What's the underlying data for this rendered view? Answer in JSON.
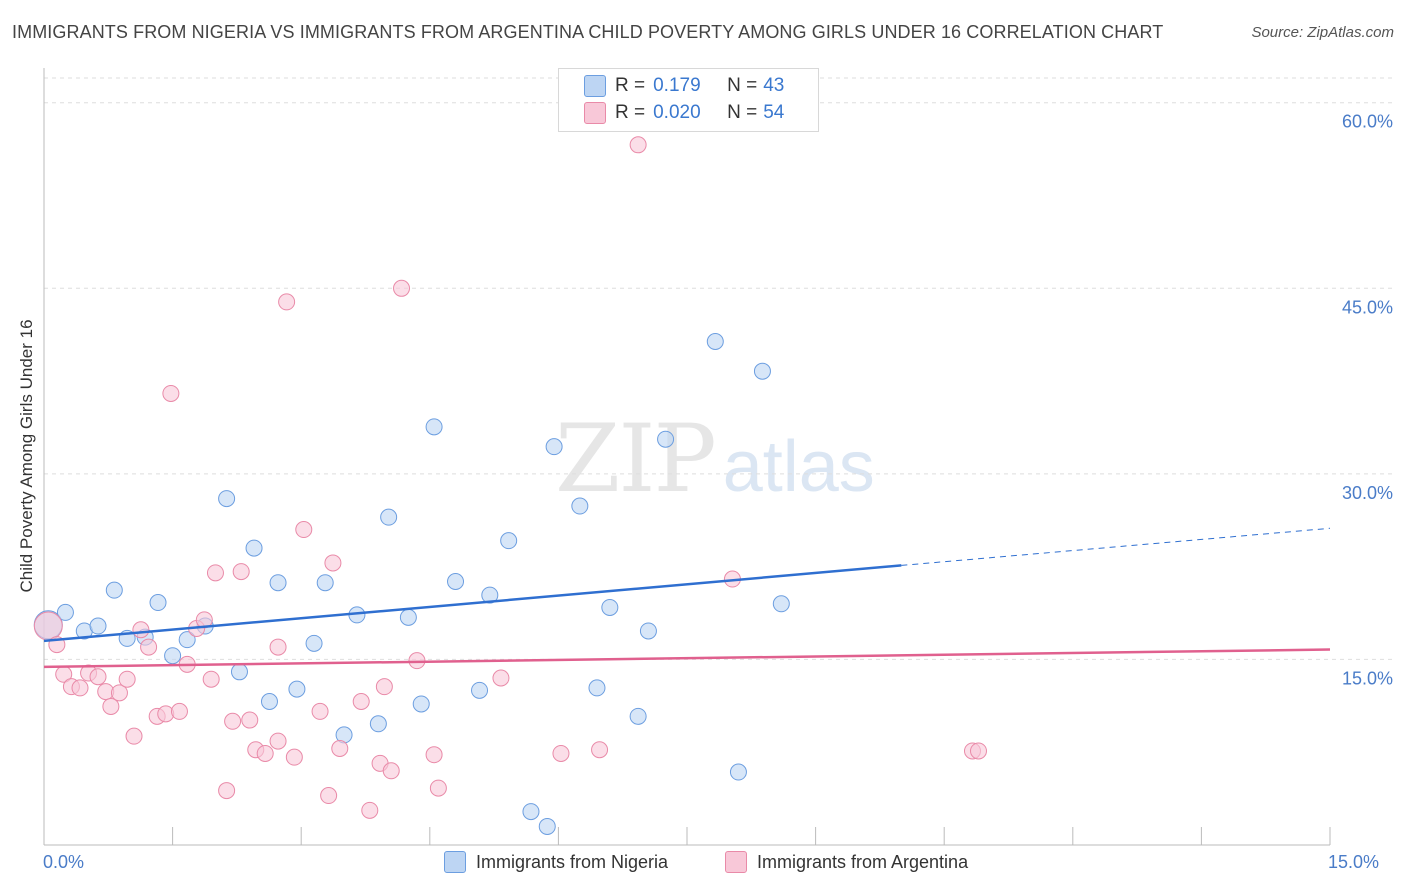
{
  "title": "IMMIGRANTS FROM NIGERIA VS IMMIGRANTS FROM ARGENTINA CHILD POVERTY AMONG GIRLS UNDER 16 CORRELATION CHART",
  "source": "Source: ZipAtlas.com",
  "watermark": {
    "zip": "ZIP",
    "atlas": "atlas"
  },
  "legend_top": {
    "nigeria": {
      "r_label": "R =",
      "r_value": "0.179",
      "n_label": "N =",
      "n_value": "43"
    },
    "argentina": {
      "r_label": "R =",
      "r_value": "0.020",
      "n_label": "N =",
      "n_value": "54"
    }
  },
  "chart_data": {
    "type": "scatter",
    "title": "IMMIGRANTS FROM NIGERIA VS IMMIGRANTS FROM ARGENTINA CHILD POVERTY AMONG GIRLS UNDER 16 CORRELATION CHART",
    "xlabel": "",
    "ylabel": "Child Poverty Among Girls Under 16",
    "xlim": [
      0,
      15
    ],
    "ylim": [
      0,
      62
    ],
    "x_tick_labels": [
      "0.0%",
      "15.0%"
    ],
    "y_ticks": [
      {
        "value": 15,
        "label": "15.0%"
      },
      {
        "value": 30,
        "label": "30.0%"
      },
      {
        "value": 45,
        "label": "45.0%"
      },
      {
        "value": 60,
        "label": "60.0%"
      }
    ],
    "series": [
      {
        "name": "Immigrants from Nigeria",
        "color": "#6c9ee0",
        "fill": "#bdd5f3",
        "points": [
          {
            "x": 0.05,
            "y": 17.8,
            "big": true
          },
          {
            "x": 0.25,
            "y": 18.8
          },
          {
            "x": 0.47,
            "y": 17.3
          },
          {
            "x": 0.63,
            "y": 17.7
          },
          {
            "x": 0.82,
            "y": 20.6
          },
          {
            "x": 0.97,
            "y": 16.7
          },
          {
            "x": 1.18,
            "y": 16.8
          },
          {
            "x": 1.33,
            "y": 19.6
          },
          {
            "x": 1.5,
            "y": 15.3
          },
          {
            "x": 1.67,
            "y": 16.6
          },
          {
            "x": 1.88,
            "y": 17.7
          },
          {
            "x": 2.13,
            "y": 28.0
          },
          {
            "x": 2.28,
            "y": 14.0
          },
          {
            "x": 2.45,
            "y": 24.0
          },
          {
            "x": 2.63,
            "y": 11.6
          },
          {
            "x": 2.73,
            "y": 21.2
          },
          {
            "x": 2.95,
            "y": 12.6
          },
          {
            "x": 3.15,
            "y": 16.3
          },
          {
            "x": 3.28,
            "y": 21.2
          },
          {
            "x": 3.65,
            "y": 18.6
          },
          {
            "x": 3.5,
            "y": 8.9
          },
          {
            "x": 3.9,
            "y": 9.8
          },
          {
            "x": 4.02,
            "y": 26.5
          },
          {
            "x": 4.25,
            "y": 18.4
          },
          {
            "x": 4.4,
            "y": 11.4
          },
          {
            "x": 4.55,
            "y": 33.8
          },
          {
            "x": 4.8,
            "y": 21.3
          },
          {
            "x": 5.08,
            "y": 12.5
          },
          {
            "x": 5.2,
            "y": 20.2
          },
          {
            "x": 5.42,
            "y": 24.6
          },
          {
            "x": 5.68,
            "y": 2.7
          },
          {
            "x": 5.87,
            "y": 1.5
          },
          {
            "x": 5.95,
            "y": 32.2
          },
          {
            "x": 6.25,
            "y": 27.4
          },
          {
            "x": 6.45,
            "y": 12.7
          },
          {
            "x": 6.6,
            "y": 19.2
          },
          {
            "x": 6.93,
            "y": 10.4
          },
          {
            "x": 7.05,
            "y": 17.3
          },
          {
            "x": 7.25,
            "y": 32.8
          },
          {
            "x": 7.83,
            "y": 40.7
          },
          {
            "x": 8.1,
            "y": 5.9
          },
          {
            "x": 8.38,
            "y": 38.3
          },
          {
            "x": 8.6,
            "y": 19.5
          }
        ]
      },
      {
        "name": "Immigrants from Argentina",
        "color": "#e98aa8",
        "fill": "#f8c8d8",
        "points": [
          {
            "x": 0.05,
            "y": 17.7,
            "big": true
          },
          {
            "x": 0.15,
            "y": 16.2
          },
          {
            "x": 0.23,
            "y": 13.8
          },
          {
            "x": 0.32,
            "y": 12.8
          },
          {
            "x": 0.42,
            "y": 12.7
          },
          {
            "x": 0.52,
            "y": 13.9
          },
          {
            "x": 0.63,
            "y": 13.6
          },
          {
            "x": 0.72,
            "y": 12.4
          },
          {
            "x": 0.78,
            "y": 11.2
          },
          {
            "x": 0.88,
            "y": 12.3
          },
          {
            "x": 0.97,
            "y": 13.4
          },
          {
            "x": 1.05,
            "y": 8.8
          },
          {
            "x": 1.13,
            "y": 17.4
          },
          {
            "x": 1.22,
            "y": 16.0
          },
          {
            "x": 1.32,
            "y": 10.4
          },
          {
            "x": 1.42,
            "y": 10.6
          },
          {
            "x": 1.48,
            "y": 36.5
          },
          {
            "x": 1.58,
            "y": 10.8
          },
          {
            "x": 1.67,
            "y": 14.6
          },
          {
            "x": 1.78,
            "y": 17.5
          },
          {
            "x": 1.87,
            "y": 18.2
          },
          {
            "x": 1.95,
            "y": 13.4
          },
          {
            "x": 2.0,
            "y": 22.0
          },
          {
            "x": 2.13,
            "y": 4.4
          },
          {
            "x": 2.2,
            "y": 10.0
          },
          {
            "x": 2.3,
            "y": 22.1
          },
          {
            "x": 2.4,
            "y": 10.1
          },
          {
            "x": 2.47,
            "y": 7.7
          },
          {
            "x": 2.58,
            "y": 7.4
          },
          {
            "x": 2.73,
            "y": 8.4
          },
          {
            "x": 2.73,
            "y": 16.0
          },
          {
            "x": 2.83,
            "y": 43.9
          },
          {
            "x": 2.92,
            "y": 7.1
          },
          {
            "x": 3.03,
            "y": 25.5
          },
          {
            "x": 3.22,
            "y": 10.8
          },
          {
            "x": 3.32,
            "y": 4.0
          },
          {
            "x": 3.37,
            "y": 22.8
          },
          {
            "x": 3.45,
            "y": 7.8
          },
          {
            "x": 3.7,
            "y": 11.6
          },
          {
            "x": 3.8,
            "y": 2.8
          },
          {
            "x": 3.92,
            "y": 6.6
          },
          {
            "x": 3.97,
            "y": 12.8
          },
          {
            "x": 4.05,
            "y": 6.0
          },
          {
            "x": 4.17,
            "y": 45.0
          },
          {
            "x": 4.35,
            "y": 14.9
          },
          {
            "x": 4.55,
            "y": 7.3
          },
          {
            "x": 4.6,
            "y": 4.6
          },
          {
            "x": 5.33,
            "y": 13.5
          },
          {
            "x": 6.03,
            "y": 7.4
          },
          {
            "x": 6.48,
            "y": 7.7
          },
          {
            "x": 6.93,
            "y": 56.6
          },
          {
            "x": 8.03,
            "y": 21.5
          },
          {
            "x": 10.83,
            "y": 7.6
          },
          {
            "x": 10.9,
            "y": 7.6
          }
        ]
      }
    ],
    "trend_lines": [
      {
        "series": "Immigrants from Nigeria",
        "color": "#2f6fd0",
        "x_start": 0.0,
        "y_start": 16.5,
        "x_end": 10.0,
        "y_end": 22.6,
        "dashed_to_x": 15.0,
        "dashed_to_y": 25.6
      },
      {
        "series": "Immigrants from Argentina",
        "color": "#e0608e",
        "x_start": 0.0,
        "y_start": 14.4,
        "x_end": 15.0,
        "y_end": 15.8
      }
    ]
  },
  "legend_bottom": [
    {
      "label": "Immigrants from Nigeria",
      "color": "#bdd5f3",
      "border": "#6c9ee0"
    },
    {
      "label": "Immigrants from Argentina",
      "color": "#f8c8d8",
      "border": "#e98aa8"
    }
  ]
}
